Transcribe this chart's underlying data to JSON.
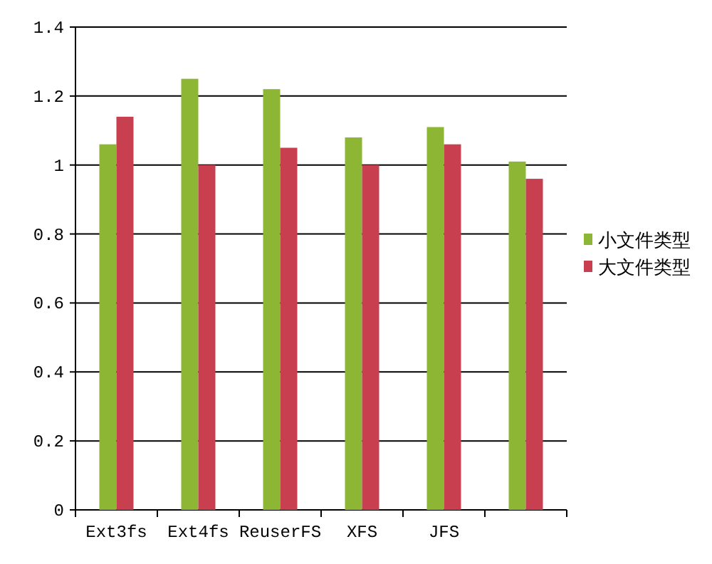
{
  "chart_data": {
    "type": "bar",
    "categories": [
      "Ext3fs",
      "Ext4fs",
      "ReuserFS",
      "XFS",
      "JFS",
      null
    ],
    "series": [
      {
        "name": "小文件类型",
        "color": "#8db634",
        "values": [
          1.06,
          1.25,
          1.22,
          1.08,
          1.11,
          1.01
        ]
      },
      {
        "name": "大文件类型",
        "color": "#c8404f",
        "values": [
          1.14,
          1.0,
          1.05,
          1.0,
          1.06,
          0.96
        ]
      }
    ],
    "ylim": [
      0,
      1.4
    ],
    "yticks": [
      {
        "value": 0,
        "label": "0"
      },
      {
        "value": 0.2,
        "label": "0.2"
      },
      {
        "value": 0.4,
        "label": "0.4"
      },
      {
        "value": 0.6,
        "label": "0.6"
      },
      {
        "value": 0.8,
        "label": "0.8"
      },
      {
        "value": 1,
        "label": "1"
      },
      {
        "value": 1.2,
        "label": "1.2"
      },
      {
        "value": 1.4,
        "label": "1.4"
      }
    ],
    "grid": "y",
    "legend": "right"
  }
}
